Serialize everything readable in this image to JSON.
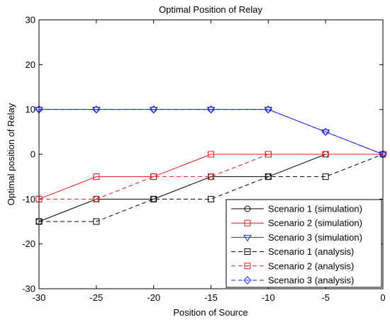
{
  "chart_data": {
    "type": "line",
    "title": "Optimal Position of Relay",
    "xlabel": "Position of Source",
    "ylabel": "Optimal position of Relay",
    "xlim": [
      -30,
      0
    ],
    "ylim": [
      -30,
      30
    ],
    "xticks": [
      -30,
      -25,
      -20,
      -15,
      -10,
      -5,
      0
    ],
    "yticks": [
      -30,
      -20,
      -10,
      0,
      10,
      20,
      30
    ],
    "grid": false,
    "legend_position": "bottom-right",
    "x": [
      -30,
      -25,
      -20,
      -15,
      -10,
      -5,
      0
    ],
    "series": [
      {
        "name": "Scenario 1 (simulation)",
        "values": [
          -15,
          -10,
          -10,
          -5,
          -5,
          0,
          0
        ],
        "color": "#000000",
        "dash": "solid",
        "marker": "circle"
      },
      {
        "name": "Scenario 2 (simulation)",
        "values": [
          -10,
          -5,
          -5,
          0,
          0,
          0,
          0
        ],
        "color": "#e8191b",
        "dash": "solid",
        "marker": "square"
      },
      {
        "name": "Scenario 3 (simulation)",
        "values": [
          10,
          10,
          10,
          10,
          10,
          5,
          0
        ],
        "color": "#1b22e8",
        "dash": "solid",
        "marker": "triangle-down"
      },
      {
        "name": "Scenario 1 (analysis)",
        "values": [
          -15,
          -15,
          -10,
          -10,
          -5,
          -5,
          0
        ],
        "color": "#000000",
        "dash": "dashed",
        "marker": "square"
      },
      {
        "name": "Scenario 2 (analysis)",
        "values": [
          -10,
          -10,
          -5,
          -5,
          0,
          0,
          0
        ],
        "color": "#e8191b",
        "dash": "dashed",
        "marker": "square"
      },
      {
        "name": "Scenario 3 (analysis)",
        "values": [
          10,
          10,
          10,
          10,
          10,
          5,
          0
        ],
        "color": "#1b22e8",
        "dash": "dashed",
        "marker": "diamond"
      }
    ]
  }
}
